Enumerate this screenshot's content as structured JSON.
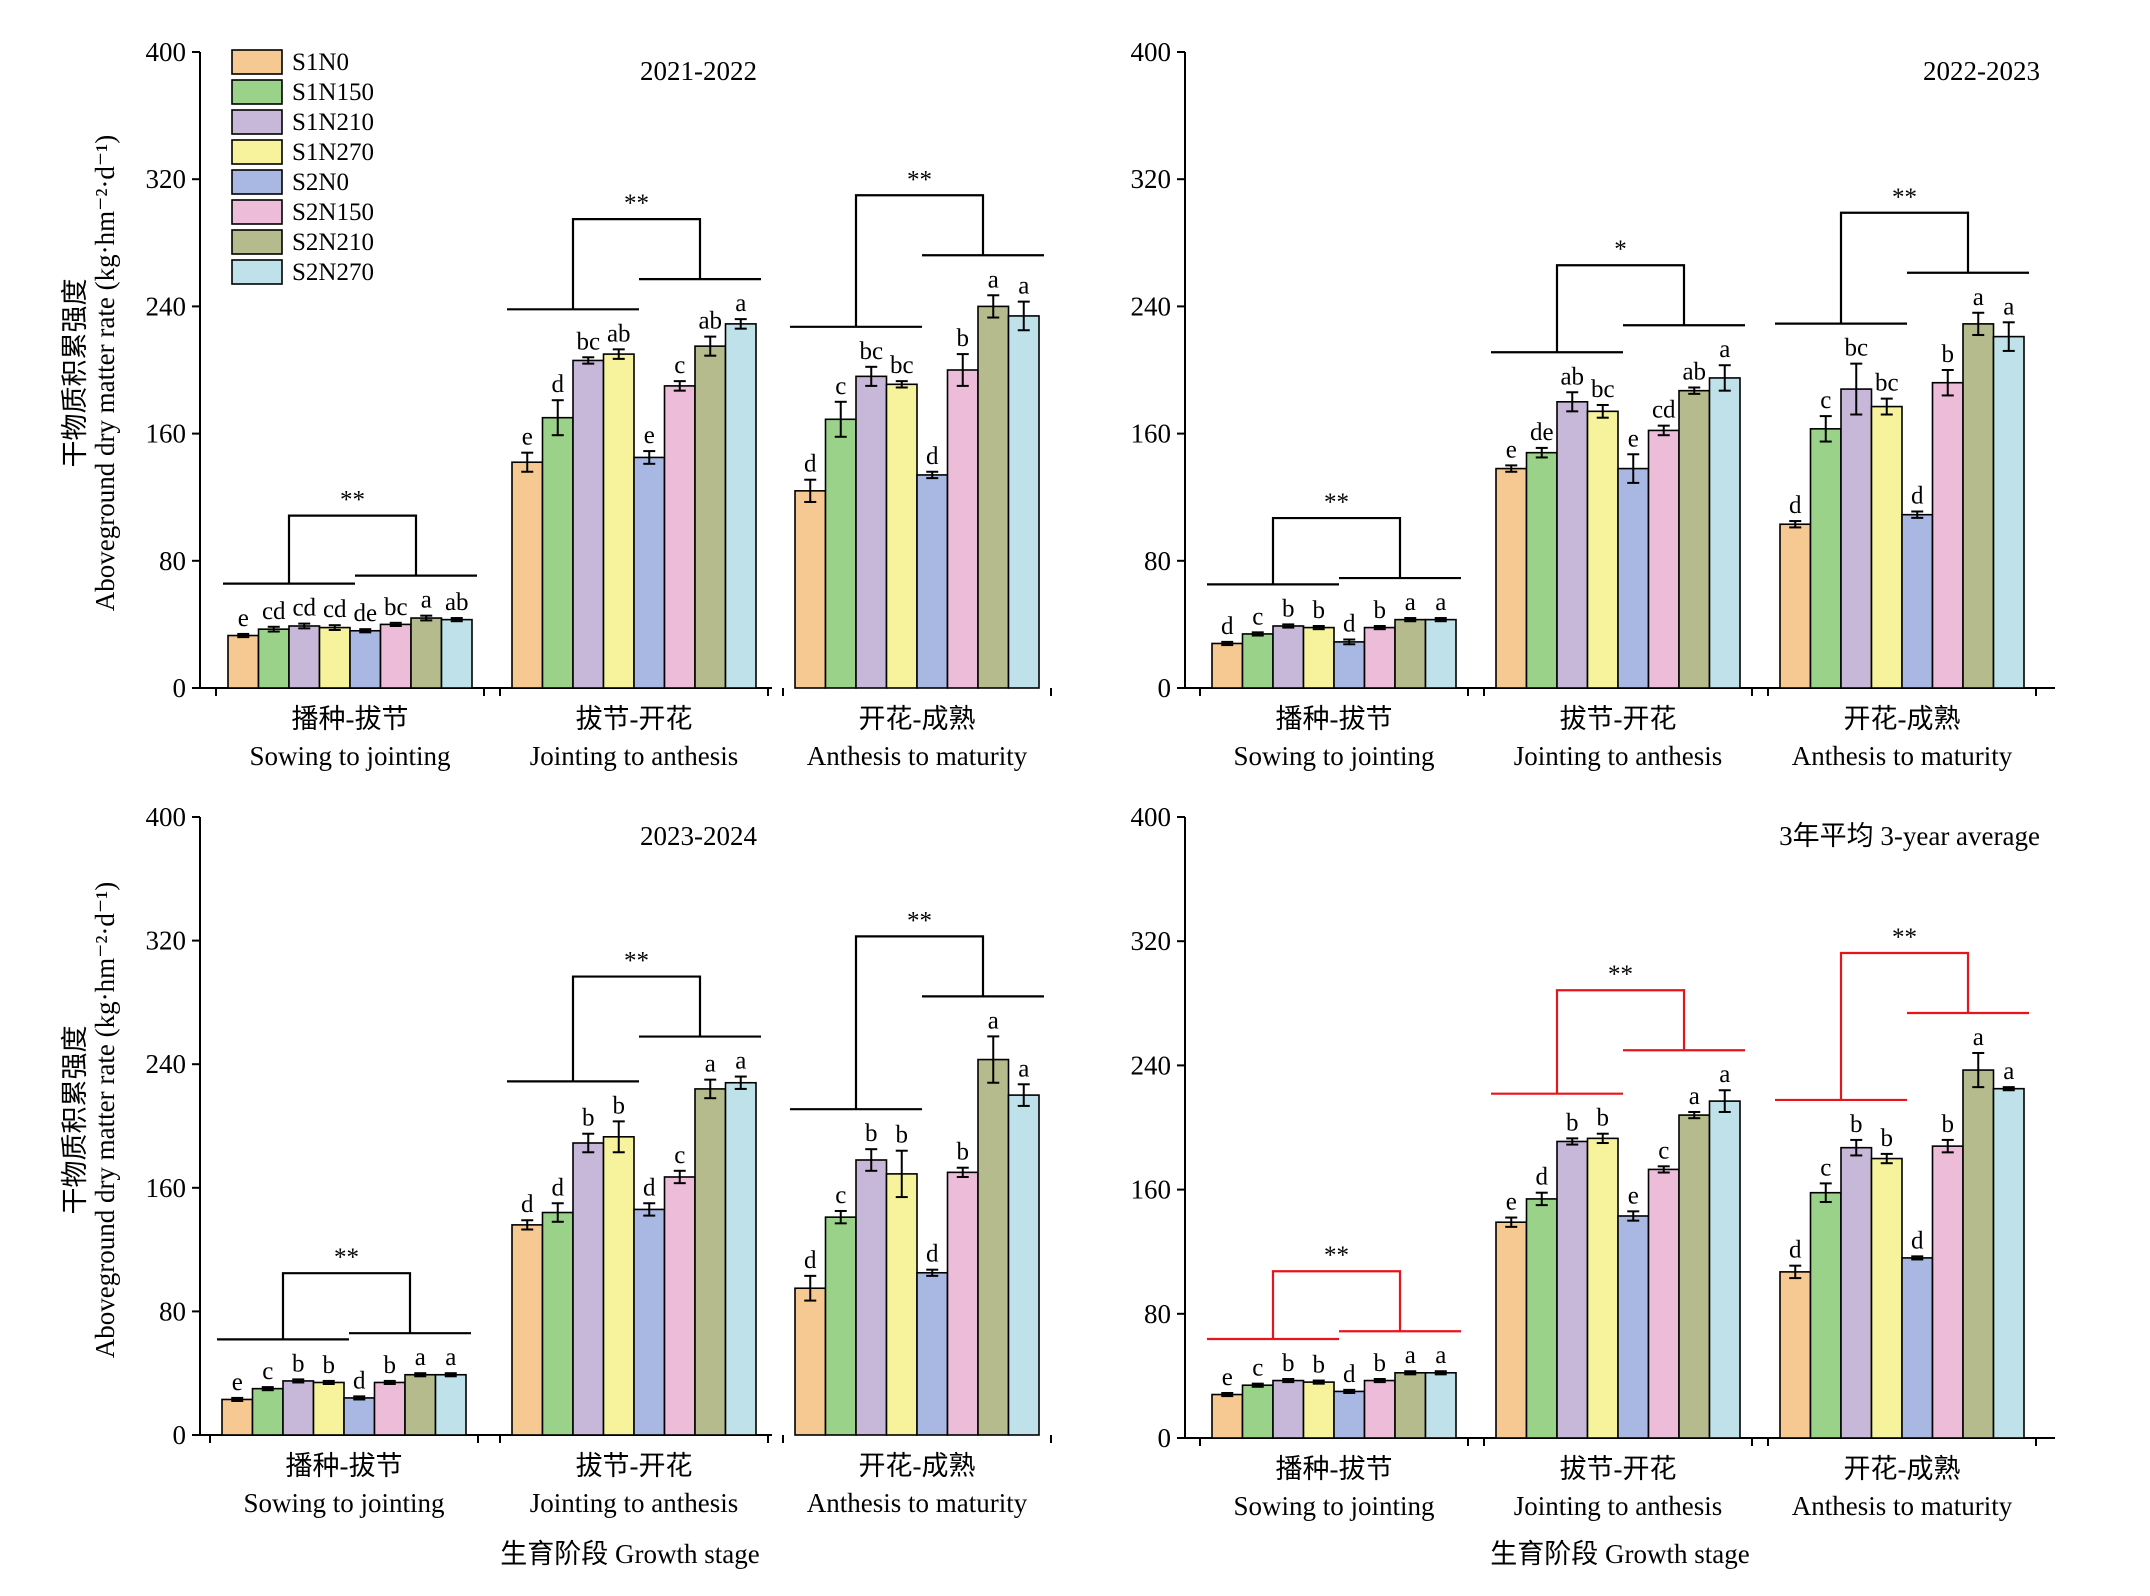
{
  "figure": {
    "ylabel_cn": "干物质积累强度",
    "ylabel_en": "Aboveground dry matter rate (kg·hm⁻²·d⁻¹)",
    "xlabel": "生育阶段 Growth stage"
  },
  "chart_data": [
    {
      "type": "bar",
      "title": "2021-2022",
      "ylim": [
        0,
        400
      ],
      "yticks": [
        0,
        80,
        160,
        240,
        320,
        400
      ],
      "stages": [
        {
          "cn": "播种-拔节",
          "en": "Sowing to jointing"
        },
        {
          "cn": "拔节-开花",
          "en": "Jointing to anthesis"
        },
        {
          "cn": "开花-成熟",
          "en": "Anthesis to maturity"
        }
      ],
      "treatments": [
        "S1N0",
        "S1N150",
        "S1N210",
        "S1N270",
        "S2N0",
        "S2N150",
        "S2N210",
        "S2N270"
      ],
      "values": [
        [
          33,
          37,
          39,
          38,
          36,
          40,
          44,
          43
        ],
        [
          142,
          170,
          206,
          210,
          145,
          190,
          215,
          229
        ],
        [
          124,
          169,
          196,
          191,
          134,
          200,
          240,
          234
        ]
      ],
      "errors": [
        [
          1,
          1.5,
          1.5,
          1.5,
          1,
          1,
          1.5,
          1
        ],
        [
          6,
          11,
          2,
          3,
          4,
          3,
          6,
          3
        ],
        [
          7,
          11,
          6,
          2,
          2,
          10,
          7,
          9
        ]
      ],
      "letters": [
        [
          "e",
          "cd",
          "cd",
          "cd",
          "de",
          "bc",
          "a",
          "ab"
        ],
        [
          "e",
          "d",
          "bc",
          "ab",
          "e",
          "c",
          "ab",
          "a"
        ],
        [
          "d",
          "c",
          "bc",
          "bc",
          "d",
          "b",
          "a",
          "a"
        ]
      ],
      "significance": [
        "**",
        "**",
        "**"
      ],
      "legend": {
        "placement": "top-left"
      },
      "red_brackets": false
    },
    {
      "type": "bar",
      "title": "2022-2023",
      "ylim": [
        0,
        400
      ],
      "yticks": [
        0,
        80,
        160,
        240,
        320,
        400
      ],
      "stages": [
        {
          "cn": "播种-拔节",
          "en": "Sowing to jointing"
        },
        {
          "cn": "拔节-开花",
          "en": "Jointing to anthesis"
        },
        {
          "cn": "开花-成熟",
          "en": "Anthesis to maturity"
        }
      ],
      "treatments": [
        "S1N0",
        "S1N150",
        "S1N210",
        "S1N270",
        "S2N0",
        "S2N150",
        "S2N210",
        "S2N270"
      ],
      "values": [
        [
          28,
          34,
          39,
          38,
          29,
          38,
          43,
          43
        ],
        [
          138,
          148,
          180,
          174,
          138,
          162,
          187,
          195
        ],
        [
          103,
          163,
          188,
          177,
          109,
          192,
          229,
          221
        ]
      ],
      "errors": [
        [
          1,
          1,
          1,
          1,
          1.5,
          1,
          1,
          1
        ],
        [
          2,
          3,
          6,
          4,
          9,
          3,
          2,
          8
        ],
        [
          2,
          8,
          16,
          5,
          2,
          8,
          7,
          9
        ]
      ],
      "letters": [
        [
          "d",
          "c",
          "b",
          "b",
          "d",
          "b",
          "a",
          "a"
        ],
        [
          "e",
          "de",
          "ab",
          "bc",
          "e",
          "cd",
          "ab",
          "a"
        ],
        [
          "d",
          "c",
          "bc",
          "bc",
          "d",
          "b",
          "a",
          "a"
        ]
      ],
      "significance": [
        "**",
        "*",
        "**"
      ],
      "red_brackets": false
    },
    {
      "type": "bar",
      "title": "2023-2024",
      "ylim": [
        0,
        400
      ],
      "yticks": [
        0,
        80,
        160,
        240,
        320,
        400
      ],
      "stages": [
        {
          "cn": "播种-拔节",
          "en": "Sowing to jointing"
        },
        {
          "cn": "拔节-开花",
          "en": "Jointing to anthesis"
        },
        {
          "cn": "开花-成熟",
          "en": "Anthesis to maturity"
        }
      ],
      "treatments": [
        "S1N0",
        "S1N150",
        "S1N210",
        "S1N270",
        "S2N0",
        "S2N150",
        "S2N210",
        "S2N270"
      ],
      "values": [
        [
          23,
          30,
          35,
          34,
          24,
          34,
          39,
          39
        ],
        [
          136,
          144,
          189,
          193,
          146,
          167,
          224,
          228
        ],
        [
          95,
          141,
          178,
          169,
          105,
          170,
          243,
          220
        ]
      ],
      "errors": [
        [
          1,
          1,
          1,
          1,
          1,
          1,
          1,
          1
        ],
        [
          3,
          6,
          6,
          10,
          4,
          4,
          6,
          4
        ],
        [
          8,
          4,
          7,
          15,
          2,
          3,
          15,
          7
        ]
      ],
      "letters": [
        [
          "e",
          "c",
          "b",
          "b",
          "d",
          "b",
          "a",
          "a"
        ],
        [
          "d",
          "d",
          "b",
          "b",
          "d",
          "c",
          "a",
          "a"
        ],
        [
          "d",
          "c",
          "b",
          "b",
          "d",
          "b",
          "a",
          "a"
        ]
      ],
      "significance": [
        "**",
        "**",
        "**"
      ],
      "red_brackets": false
    },
    {
      "type": "bar",
      "title": "3年平均 3-year average",
      "ylim": [
        0,
        400
      ],
      "yticks": [
        0,
        80,
        160,
        240,
        320,
        400
      ],
      "stages": [
        {
          "cn": "播种-拔节",
          "en": "Sowing to jointing"
        },
        {
          "cn": "拔节-开花",
          "en": "Jointing to anthesis"
        },
        {
          "cn": "开花-成熟",
          "en": "Anthesis to maturity"
        }
      ],
      "treatments": [
        "S1N0",
        "S1N150",
        "S1N210",
        "S1N270",
        "S2N0",
        "S2N150",
        "S2N210",
        "S2N270"
      ],
      "values": [
        [
          28,
          34,
          37,
          36,
          30,
          37,
          42,
          42
        ],
        [
          139,
          154,
          191,
          193,
          143,
          173,
          208,
          217
        ],
        [
          107,
          158,
          187,
          180,
          116,
          188,
          237,
          225
        ]
      ],
      "errors": [
        [
          1,
          1,
          1,
          1,
          1,
          1,
          1,
          1
        ],
        [
          3,
          4,
          2,
          3,
          3,
          2,
          2,
          7
        ],
        [
          4,
          6,
          5,
          3,
          1,
          4,
          11,
          1
        ]
      ],
      "letters": [
        [
          "e",
          "c",
          "b",
          "b",
          "d",
          "b",
          "a",
          "a"
        ],
        [
          "e",
          "d",
          "b",
          "b",
          "e",
          "c",
          "a",
          "a"
        ],
        [
          "d",
          "c",
          "b",
          "b",
          "d",
          "b",
          "a",
          "a"
        ]
      ],
      "significance": [
        "**",
        "**",
        "**"
      ],
      "red_brackets": true
    }
  ],
  "colors": {
    "treatments": [
      "#f6c992",
      "#9bd28a",
      "#c7b8da",
      "#f7f39c",
      "#a8b8e2",
      "#ecbcd9",
      "#b5bb8c",
      "#bfe2ea"
    ],
    "bracket_default": "#000000",
    "bracket_highlight": "#e8141b"
  }
}
